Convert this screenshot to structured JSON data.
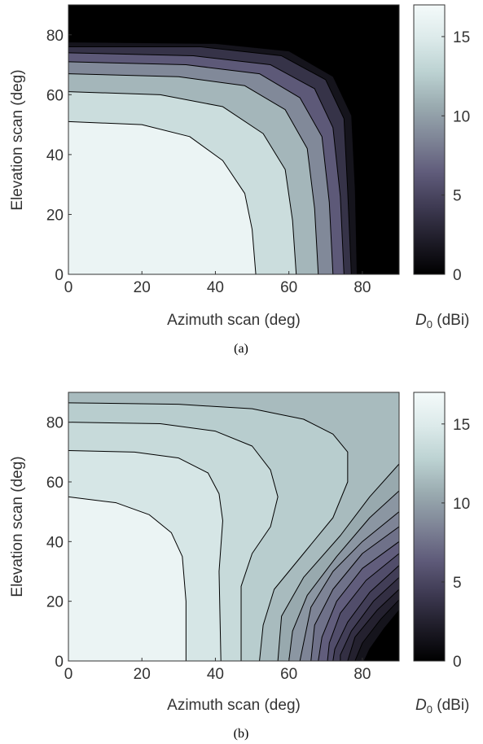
{
  "colormap": [
    "#000000",
    "#1e1c28",
    "#3e3a52",
    "#5f5b7a",
    "#7e8496",
    "#9aabb0",
    "#bcd2d2",
    "#dceaea",
    "#f4fafa"
  ],
  "chart_data": [
    {
      "type": "contour",
      "caption": "(a)",
      "xlabel": "Azimuth scan (deg)",
      "ylabel": "Elevation scan (deg)",
      "xlim": [
        0,
        90
      ],
      "ylim": [
        0,
        90
      ],
      "xticks": [
        0,
        20,
        40,
        60,
        80
      ],
      "yticks": [
        0,
        20,
        40,
        60,
        80
      ],
      "colorbar": {
        "label_symbol": "D",
        "label_subscript": "0",
        "label_unit": " (dBi)",
        "range": [
          0,
          17
        ],
        "ticks": [
          0,
          5,
          10,
          15
        ]
      },
      "contours": [
        {
          "level": 15,
          "points": [
            [
              0,
              51
            ],
            [
              20,
              50
            ],
            [
              33,
              46
            ],
            [
              42,
              38
            ],
            [
              48,
              27
            ],
            [
              50,
              15
            ],
            [
              51,
              0
            ]
          ]
        },
        {
          "level": 12.5,
          "points": [
            [
              0,
              61
            ],
            [
              25,
              60
            ],
            [
              42,
              56
            ],
            [
              53,
              47
            ],
            [
              59,
              35
            ],
            [
              61,
              18
            ],
            [
              62,
              0
            ]
          ]
        },
        {
          "level": 10,
          "points": [
            [
              0,
              67
            ],
            [
              30,
              66
            ],
            [
              48,
              63
            ],
            [
              59,
              55
            ],
            [
              65,
              42
            ],
            [
              67,
              22
            ],
            [
              68,
              0
            ]
          ]
        },
        {
          "level": 7.5,
          "points": [
            [
              0,
              71
            ],
            [
              32,
              70
            ],
            [
              52,
              67
            ],
            [
              63,
              59
            ],
            [
              69,
              46
            ],
            [
              71,
              24
            ],
            [
              72,
              0
            ]
          ]
        },
        {
          "level": 5,
          "points": [
            [
              0,
              74
            ],
            [
              34,
              73
            ],
            [
              55,
              70
            ],
            [
              67,
              62
            ],
            [
              72,
              49
            ],
            [
              74,
              26
            ],
            [
              75,
              0
            ]
          ]
        },
        {
          "level": 2.5,
          "points": [
            [
              0,
              76
            ],
            [
              36,
              76
            ],
            [
              58,
              73
            ],
            [
              70,
              65
            ],
            [
              75,
              52
            ],
            [
              76,
              28
            ],
            [
              77,
              0
            ]
          ]
        },
        {
          "level": 0.5,
          "points": [
            [
              0,
              77.5
            ],
            [
              40,
              77
            ],
            [
              60,
              74.5
            ],
            [
              72,
              66
            ],
            [
              77,
              53
            ],
            [
              78,
              28
            ],
            [
              78.5,
              0
            ]
          ]
        }
      ]
    },
    {
      "type": "contour",
      "caption": "(b)",
      "xlabel": "Azimuth scan (deg)",
      "ylabel": "Elevation scan (deg)",
      "xlim": [
        0,
        90
      ],
      "ylim": [
        0,
        90
      ],
      "xticks": [
        0,
        20,
        40,
        60,
        80
      ],
      "yticks": [
        0,
        20,
        40,
        60,
        80
      ],
      "colorbar": {
        "label_symbol": "D",
        "label_subscript": "0",
        "label_unit": " (dBi)",
        "range": [
          0,
          17
        ],
        "ticks": [
          0,
          5,
          10,
          15
        ]
      },
      "contours": [
        {
          "level": 15,
          "points": [
            [
              0,
              55
            ],
            [
              13,
              53
            ],
            [
              22,
              49
            ],
            [
              28,
              43
            ],
            [
              31,
              35
            ],
            [
              32,
              20
            ],
            [
              32,
              0
            ]
          ]
        },
        {
          "level": 14,
          "points": [
            [
              0,
              70.5
            ],
            [
              18,
              70
            ],
            [
              30,
              68
            ],
            [
              38,
              63
            ],
            [
              41,
              56
            ],
            [
              42,
              47
            ],
            [
              41,
              30
            ],
            [
              41.5,
              0
            ]
          ]
        },
        {
          "level": 13,
          "points": [
            [
              0,
              80
            ],
            [
              25,
              79.5
            ],
            [
              40,
              77
            ],
            [
              50,
              72
            ],
            [
              55,
              64
            ],
            [
              57,
              55
            ],
            [
              55,
              45
            ],
            [
              50,
              36
            ],
            [
              47,
              25
            ],
            [
              47,
              0
            ]
          ]
        },
        {
          "level": 12,
          "points": [
            [
              0,
              86.5
            ],
            [
              30,
              86
            ],
            [
              50,
              84.5
            ],
            [
              64,
              81
            ],
            [
              72,
              76
            ],
            [
              76,
              70
            ],
            [
              76,
              60
            ],
            [
              72,
              48
            ],
            [
              64,
              36
            ],
            [
              56,
              24
            ],
            [
              53,
              12
            ],
            [
              52,
              0
            ]
          ]
        },
        {
          "level": 11,
          "points": [
            [
              90,
              66
            ],
            [
              82,
              55
            ],
            [
              74,
              42
            ],
            [
              64,
              28
            ],
            [
              58,
              15
            ],
            [
              57,
              0
            ]
          ]
        },
        {
          "level": 10,
          "points": [
            [
              90,
              57
            ],
            [
              82,
              48
            ],
            [
              73,
              35
            ],
            [
              65,
              22
            ],
            [
              61,
              10
            ],
            [
              60,
              0
            ]
          ]
        },
        {
          "level": 9,
          "points": [
            [
              90,
              50
            ],
            [
              80,
              40
            ],
            [
              72,
              30
            ],
            [
              66,
              18
            ],
            [
              63,
              0
            ]
          ]
        },
        {
          "level": 8,
          "points": [
            [
              90,
              45
            ],
            [
              80,
              36
            ],
            [
              72,
              24
            ],
            [
              67,
              12
            ],
            [
              66,
              0
            ]
          ]
        },
        {
          "level": 7,
          "points": [
            [
              90,
              40
            ],
            [
              80,
              31
            ],
            [
              73,
              20
            ],
            [
              69,
              8
            ],
            [
              68,
              0
            ]
          ]
        },
        {
          "level": 6,
          "points": [
            [
              90,
              36
            ],
            [
              81,
              27
            ],
            [
              74,
              16
            ],
            [
              71,
              6
            ],
            [
              70.5,
              0
            ]
          ]
        },
        {
          "level": 5,
          "points": [
            [
              90,
              32
            ],
            [
              82,
              23
            ],
            [
              76,
              13
            ],
            [
              72.5,
              4
            ],
            [
              72,
              0
            ]
          ]
        },
        {
          "level": 4,
          "points": [
            [
              90,
              28
            ],
            [
              83,
              20
            ],
            [
              77,
              10
            ],
            [
              74,
              2
            ],
            [
              74,
              0
            ]
          ]
        },
        {
          "level": 3,
          "points": [
            [
              90,
              24
            ],
            [
              84,
              17
            ],
            [
              78,
              8
            ],
            [
              76,
              0
            ]
          ]
        },
        {
          "level": 2,
          "points": [
            [
              90,
              20.5
            ],
            [
              85,
              14
            ],
            [
              80,
              6
            ],
            [
              78,
              0
            ]
          ]
        },
        {
          "level": 1,
          "points": [
            [
              90,
              17
            ],
            [
              86,
              11
            ],
            [
              82,
              4
            ],
            [
              80.5,
              0
            ]
          ]
        }
      ]
    }
  ]
}
